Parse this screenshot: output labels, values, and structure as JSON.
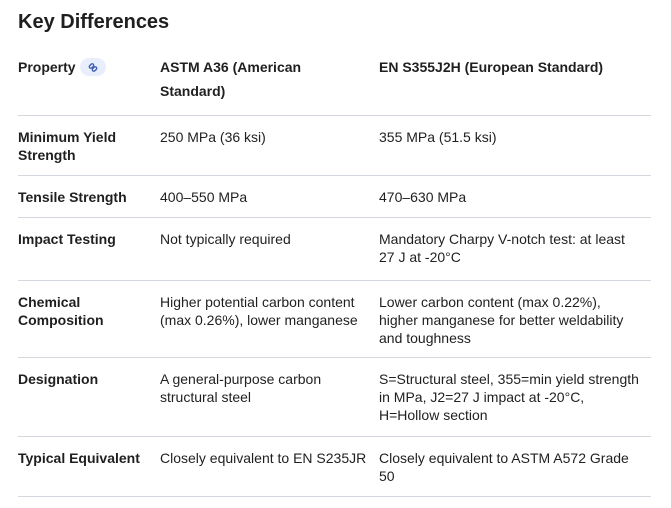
{
  "header": {
    "title": "Key Differences"
  },
  "table": {
    "columns": [
      "Property",
      "ASTM A36 (American Standard)",
      "EN S355J2H (European Standard)"
    ],
    "rows": [
      [
        "Minimum Yield Strength",
        "250 MPa (36 ksi)",
        "355 MPa (51.5 ksi)"
      ],
      [
        "Tensile Strength",
        "400–550 MPa",
        "470–630 MPa"
      ],
      [
        "Impact Testing",
        "Not typically required",
        "Mandatory Charpy V-notch test: at least 27 J at -20°C"
      ],
      [
        "Chemical Composition",
        "Higher potential carbon content (max 0.26%), lower manganese",
        "Lower carbon content (max 0.22%), higher manganese for better weldability and toughness"
      ],
      [
        "Designation",
        "A general-purpose carbon structural steel",
        "S=Structural steel, 355=min yield strength in MPa, J2=27 J impact at -20°C, H=Hollow section"
      ],
      [
        "Typical Equivalent",
        "Closely equivalent to EN S235JR",
        "Closely equivalent to ASTM A572 Grade 50"
      ]
    ]
  }
}
